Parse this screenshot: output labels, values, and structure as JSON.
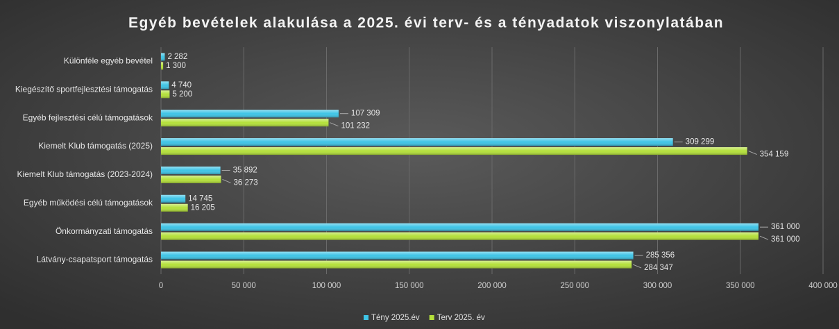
{
  "chart_data": {
    "type": "bar",
    "orientation": "horizontal",
    "title": "Egyéb bevételek alakulása a 2025. évi terv- és a tényadatok viszonylatában",
    "categories": [
      "Különféle egyéb bevétel",
      "Kiegészítő sportfejlesztési támogatás",
      "Egyéb fejlesztési célú támogatások",
      "Kiemelt Klub támogatás (2025)",
      "Kiemelt Klub támogatás (2023-2024)",
      "Egyéb működési célú támogatások",
      "Önkormányzati támogatás",
      "Látvány-csapatsport támogatás"
    ],
    "series": [
      {
        "name": "Tény 2025.év",
        "color": "#3ec4e6",
        "values": [
          2282,
          4740,
          107309,
          309299,
          35892,
          14745,
          361000,
          285356
        ],
        "value_labels": [
          "2 282",
          "4 740",
          "107 309",
          "309 299",
          "35 892",
          "14 745",
          "361 000",
          "285 356"
        ]
      },
      {
        "name": "Terv 2025. év",
        "color": "#b4e03a",
        "values": [
          1300,
          5200,
          101232,
          354159,
          36273,
          16205,
          361000,
          284347
        ],
        "value_labels": [
          "1 300",
          "5 200",
          "101 232",
          "354 159",
          "36 273",
          "16 205",
          "361 000",
          "284 347"
        ]
      }
    ],
    "xlim": [
      0,
      400000
    ],
    "xticks": [
      0,
      {
        "value": 50000,
        "label": "50 000"
      },
      {
        "value": 100000,
        "label": "100 000"
      },
      {
        "value": 150000,
        "label": "150 000"
      },
      {
        "value": 200000,
        "label": "200 000"
      },
      {
        "value": 250000,
        "label": "250 000"
      },
      {
        "value": 300000,
        "label": "300 000"
      },
      {
        "value": 350000,
        "label": "350 000"
      },
      {
        "value": 400000,
        "label": "400 000"
      }
    ],
    "grid": true,
    "legend": "bottom"
  }
}
